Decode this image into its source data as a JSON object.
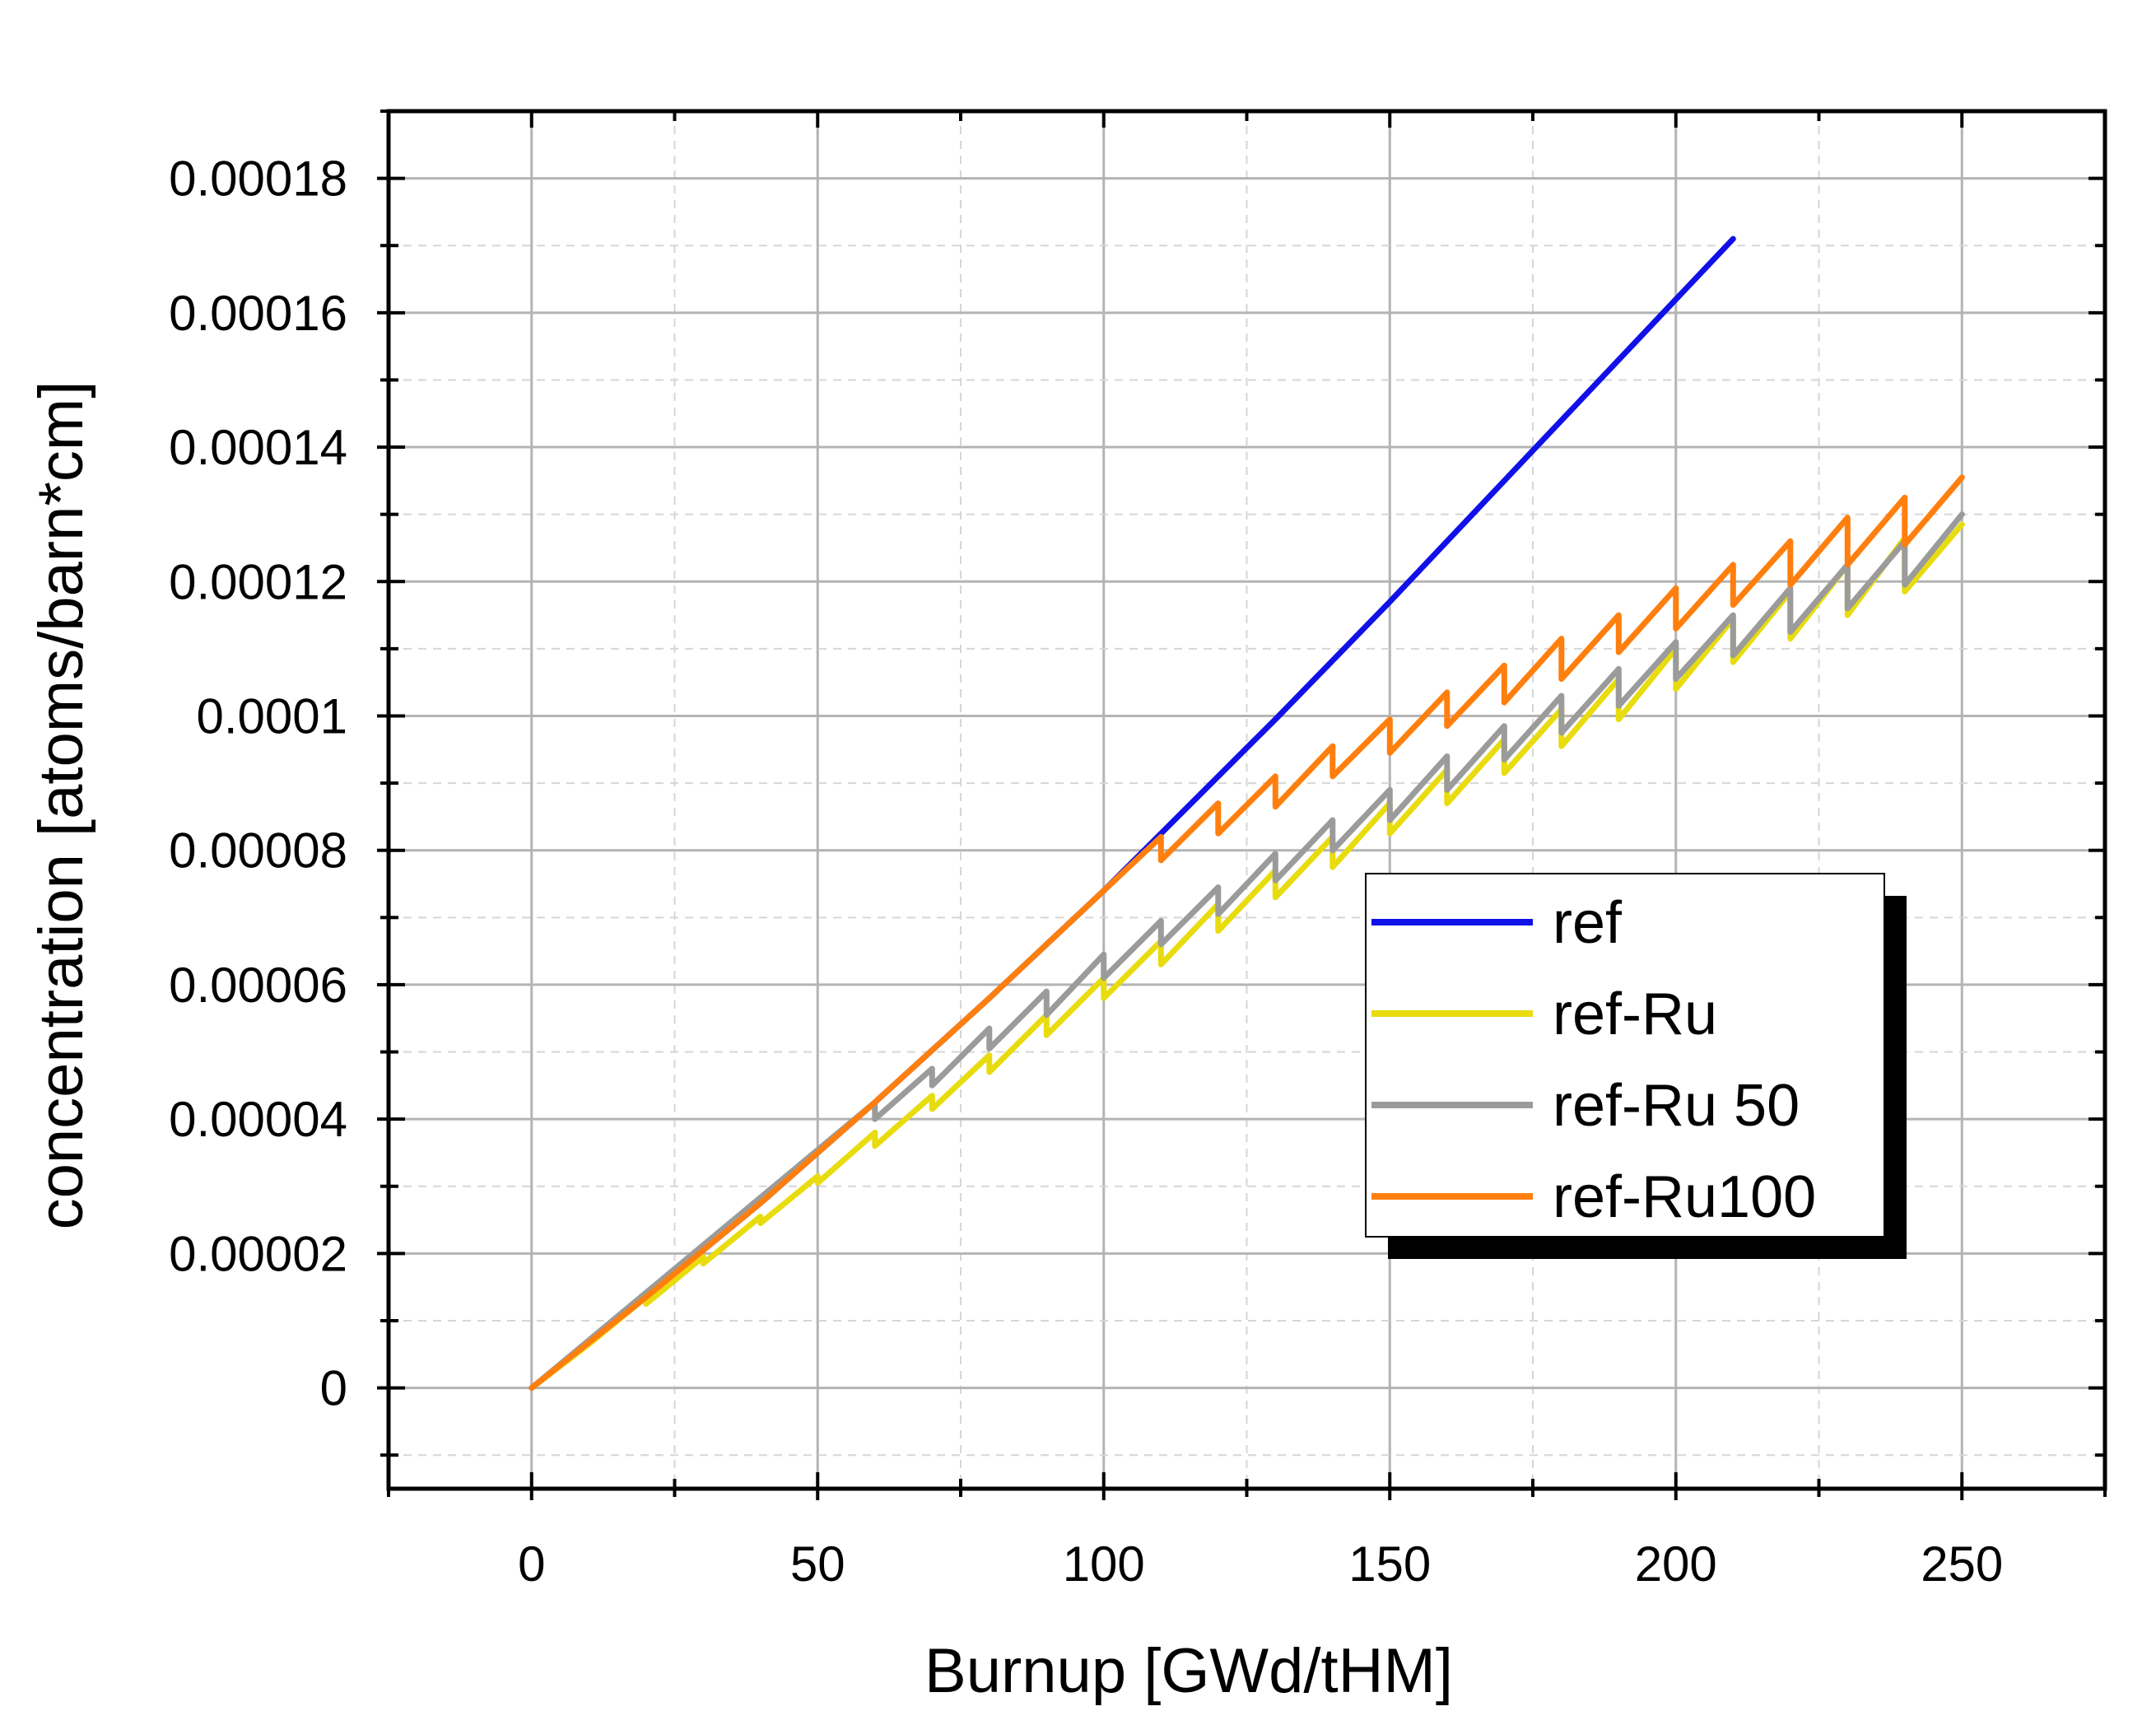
{
  "chart_data": {
    "type": "line",
    "title": "",
    "xlabel": "Burnup [GWd/tHM]",
    "ylabel": "concentration [atoms/barn*cm]",
    "xlim": [
      -25,
      275
    ],
    "ylim": [
      -1.5e-05,
      0.00019
    ],
    "x_ticks": [
      0,
      50,
      100,
      150,
      200,
      250
    ],
    "x_tick_labels": [
      "0",
      "50",
      "100",
      "150",
      "200",
      "250"
    ],
    "y_ticks": [
      0,
      2e-05,
      4e-05,
      6e-05,
      8e-05,
      0.0001,
      0.00012,
      0.00014,
      0.00016,
      0.00018
    ],
    "y_tick_labels": [
      "0",
      "0.00002",
      "0.00004",
      "0.00006",
      "0.00008",
      "0.0001",
      "0.00012",
      "0.00014",
      "0.00016",
      "0.00018"
    ],
    "grid": true,
    "legend_position": "center-right",
    "series": [
      {
        "name": "ref",
        "color": "#1010e8",
        "x": [
          0,
          20,
          40,
          60,
          80,
          100,
          110,
          130,
          150,
          170,
          190,
          210
        ],
        "y": [
          0,
          1.35e-05,
          2.75e-05,
          4.25e-05,
          5.8e-05,
          7.4e-05,
          8.25e-05,
          9.95e-05,
          0.000117,
          0.000135,
          0.000153,
          0.000171
        ]
      },
      {
        "name": "ref-Ru",
        "color": "#e8dc0e",
        "x": [
          0,
          10,
          20,
          20,
          30,
          30,
          40,
          40,
          50,
          50,
          60,
          60,
          70,
          70,
          80,
          80,
          90,
          90,
          100,
          100,
          110,
          110,
          120,
          120,
          130,
          130,
          140,
          140,
          150,
          150,
          160,
          160,
          170,
          170,
          180,
          180,
          190,
          190,
          200,
          200,
          210,
          210,
          220,
          220,
          230,
          230,
          240,
          240,
          250
        ],
        "y": [
          0,
          6.5e-06,
          1.35e-05,
          1.25e-05,
          1.95e-05,
          1.85e-05,
          2.55e-05,
          2.45e-05,
          3.15e-05,
          3.05e-05,
          3.8e-05,
          3.6e-05,
          4.35e-05,
          4.15e-05,
          4.95e-05,
          4.7e-05,
          5.55e-05,
          5.25e-05,
          6.1e-05,
          5.8e-05,
          6.65e-05,
          6.3e-05,
          7.2e-05,
          6.8e-05,
          7.7e-05,
          7.3e-05,
          8.2e-05,
          7.75e-05,
          8.7e-05,
          8.25e-05,
          9.2e-05,
          8.7e-05,
          9.65e-05,
          9.15e-05,
          0.000101,
          9.55e-05,
          0.0001055,
          9.95e-05,
          0.00011,
          0.000104,
          0.0001145,
          0.000108,
          0.0001185,
          0.0001115,
          0.0001225,
          0.000115,
          0.0001265,
          0.0001185,
          0.0001285
        ]
      },
      {
        "name": "ref-Ru 50",
        "color": "#9b9b9b",
        "x": [
          0,
          60,
          60,
          70,
          70,
          80,
          80,
          90,
          90,
          100,
          100,
          110,
          110,
          120,
          120,
          130,
          130,
          140,
          140,
          150,
          150,
          160,
          160,
          170,
          170,
          180,
          180,
          190,
          190,
          200,
          200,
          210,
          210,
          220,
          220,
          230,
          230,
          240,
          240,
          250
        ],
        "y": [
          0,
          4.25e-05,
          4e-05,
          4.75e-05,
          4.5e-05,
          5.35e-05,
          5.05e-05,
          5.9e-05,
          5.55e-05,
          6.45e-05,
          6.1e-05,
          6.95e-05,
          6.6e-05,
          7.45e-05,
          7.05e-05,
          7.95e-05,
          7.55e-05,
          8.45e-05,
          8e-05,
          8.9e-05,
          8.45e-05,
          9.4e-05,
          8.9e-05,
          9.85e-05,
          9.35e-05,
          0.000103,
          9.75e-05,
          0.000107,
          0.0001015,
          0.000111,
          0.0001055,
          0.000115,
          0.000109,
          0.000119,
          0.0001125,
          0.0001225,
          0.000116,
          0.000126,
          0.0001195,
          0.00013
        ]
      },
      {
        "name": "ref-Ru100",
        "color": "#ff7f0e",
        "x": [
          0,
          20,
          40,
          60,
          80,
          100,
          110,
          110,
          120,
          120,
          130,
          130,
          140,
          140,
          150,
          150,
          160,
          160,
          170,
          170,
          180,
          180,
          190,
          190,
          200,
          200,
          210,
          210,
          220,
          220,
          230,
          230,
          240,
          240,
          250
        ],
        "y": [
          0,
          1.35e-05,
          2.75e-05,
          4.25e-05,
          5.8e-05,
          7.4e-05,
          8.2e-05,
          7.85e-05,
          8.7e-05,
          8.25e-05,
          9.1e-05,
          8.65e-05,
          9.55e-05,
          9.1e-05,
          9.95e-05,
          9.45e-05,
          0.0001035,
          9.85e-05,
          0.0001075,
          0.000102,
          0.0001115,
          0.0001055,
          0.000115,
          0.0001095,
          0.000119,
          0.000113,
          0.0001225,
          0.0001165,
          0.000126,
          0.0001195,
          0.0001295,
          0.0001225,
          0.0001325,
          0.0001255,
          0.0001355
        ]
      }
    ]
  }
}
